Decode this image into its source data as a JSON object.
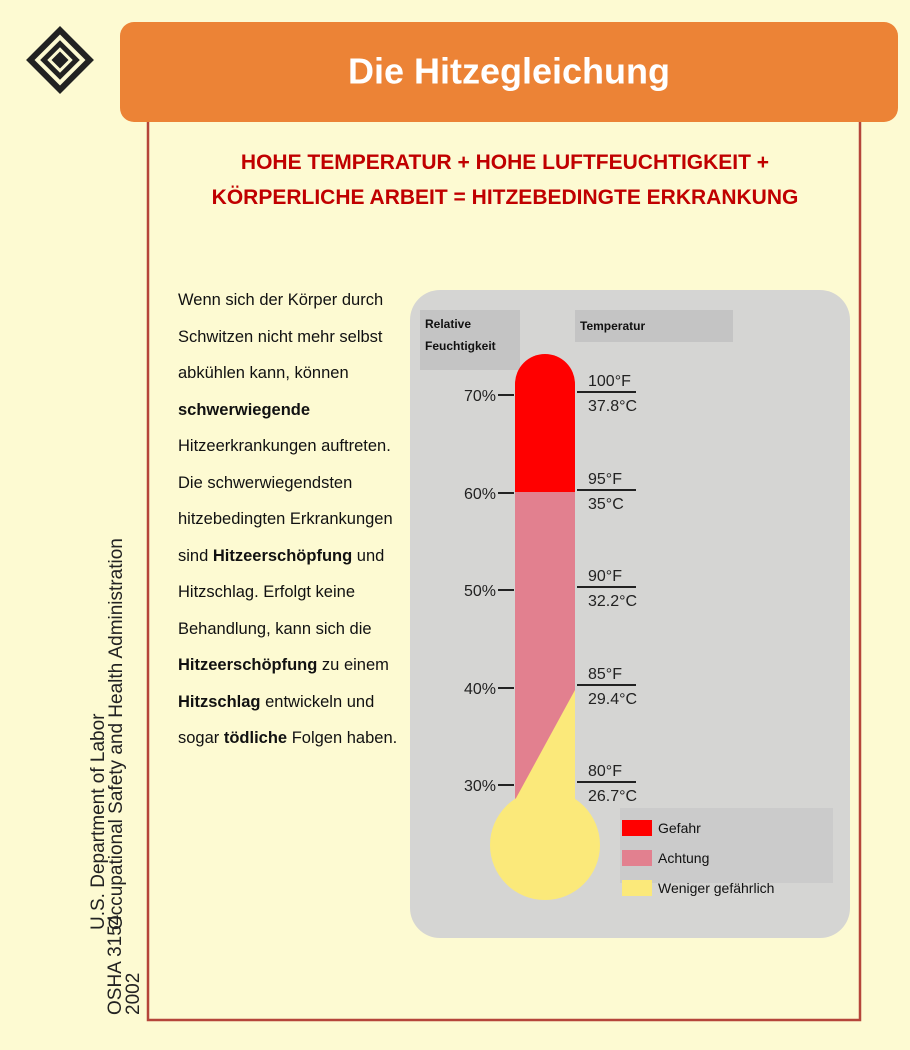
{
  "header": {
    "title": "Die Hitzegleichung"
  },
  "equation": "HOHE TEMPERATUR + HOHE LUFTFEUCHTIGKEIT + KÖRPERLICHE ARBEIT = HITZEBEDINGTE ERKRANKUNG",
  "body": [
    {
      "text": "Wenn sich der Körper durch Schwitzen nicht mehr selbst abkühlen kann, können ",
      "bold": false
    },
    {
      "text": "schwerwiegende",
      "bold": true
    },
    {
      "text": " Hitzeerkrankungen auftreten. Die schwerwiegendsten hitzebedingten Erkrankungen sind ",
      "bold": false
    },
    {
      "text": "Hitzeerschöpfung",
      "bold": true
    },
    {
      "text": " und Hitzschlag. Erfolgt keine Behandlung, kann sich die ",
      "bold": false
    },
    {
      "text": "Hitzeerschöpfung",
      "bold": true
    },
    {
      "text": " zu einem ",
      "bold": false
    },
    {
      "text": "Hitzschlag",
      "bold": true
    },
    {
      "text": " entwickeln und sogar ",
      "bold": false
    },
    {
      "text": "tödliche",
      "bold": true
    },
    {
      "text": " Folgen haben.",
      "bold": false
    }
  ],
  "thermometer": {
    "humidity_title": "Relative Feuchtigkeit",
    "temperature_title": "Temperatur",
    "humidity": [
      "70%",
      "60%",
      "50%",
      "40%",
      "30%"
    ],
    "temperatures": [
      {
        "f": "100°F",
        "c": "37.8°C"
      },
      {
        "f": "95°F",
        "c": "35°C"
      },
      {
        "f": "90°F",
        "c": "32.2°C"
      },
      {
        "f": "85°F",
        "c": "29.4°C"
      },
      {
        "f": "80°F",
        "c": "26.7°C"
      }
    ],
    "legend": [
      {
        "label": "Gefahr",
        "color": "#ff0000"
      },
      {
        "label": "Achtung",
        "color": "#e2808f"
      },
      {
        "label": "Weniger gefährlich",
        "color": "#fbe97a"
      }
    ]
  },
  "sidebar": {
    "department": "U.S. Department of Labor",
    "agency": "Occupational Safety and Health Administration",
    "publication": "OSHA 3154",
    "year": "2002"
  }
}
